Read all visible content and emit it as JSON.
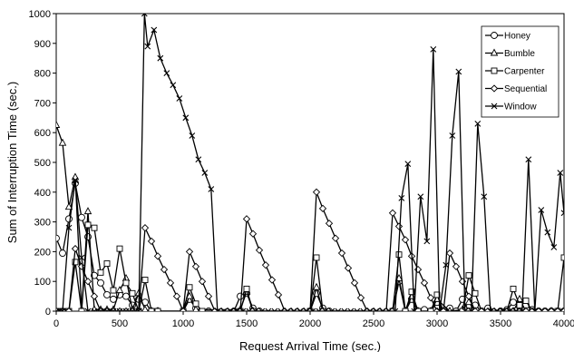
{
  "chart_data": {
    "type": "line",
    "xlabel": "Request Arrival Time (sec.)",
    "ylabel": "Sum of Interruption Time (sec.)",
    "xlim": [
      0,
      4000
    ],
    "ylim": [
      0,
      1000
    ],
    "xticks": [
      0,
      500,
      1000,
      1500,
      2000,
      2500,
      3000,
      3500,
      4000
    ],
    "yticks": [
      0,
      100,
      200,
      300,
      400,
      500,
      600,
      700,
      800,
      900,
      1000
    ],
    "grid": false,
    "legend_placement": "top-right",
    "series": [
      {
        "name": "Honey",
        "marker": "circle",
        "x": [
          0,
          50,
          100,
          150,
          200,
          250,
          300,
          350,
          400,
          450,
          500,
          550,
          600,
          650,
          700,
          750,
          800,
          1000,
          1050,
          1100,
          1200,
          1400,
          1450,
          1500,
          1550,
          1600,
          2000,
          2050,
          2100,
          2150,
          2650,
          2700,
          2750,
          2800,
          2850,
          2900,
          2950,
          3000,
          3050,
          3100,
          3150,
          3200,
          3250,
          3300,
          3350,
          3400,
          3500,
          3550,
          3600,
          3650,
          3700,
          3750,
          3800,
          3850,
          3900,
          3950,
          4000
        ],
        "y": [
          245,
          195,
          310,
          430,
          315,
          250,
          120,
          95,
          55,
          40,
          55,
          50,
          20,
          40,
          30,
          0,
          0,
          0,
          40,
          10,
          0,
          0,
          50,
          60,
          10,
          0,
          0,
          60,
          10,
          0,
          0,
          100,
          0,
          40,
          0,
          5,
          0,
          30,
          0,
          10,
          0,
          40,
          0,
          20,
          0,
          10,
          0,
          5,
          30,
          15,
          20,
          5,
          0,
          0,
          0,
          0,
          0
        ]
      },
      {
        "name": "Bumble",
        "marker": "triangle",
        "x": [
          0,
          50,
          100,
          150,
          200,
          250,
          300,
          350,
          400,
          450,
          500,
          550,
          600,
          650,
          700,
          750,
          800,
          1000,
          1050,
          1100,
          1450,
          1500,
          1550,
          2000,
          2050,
          2100,
          2650,
          2700,
          2750,
          2800,
          2850,
          2950,
          3000,
          3100,
          3200,
          3250,
          3300,
          3600,
          3650,
          3700,
          3900,
          4000
        ],
        "y": [
          625,
          565,
          350,
          450,
          5,
          335,
          5,
          5,
          5,
          5,
          70,
          110,
          5,
          60,
          5,
          0,
          0,
          0,
          50,
          5,
          5,
          65,
          0,
          0,
          80,
          0,
          0,
          110,
          0,
          50,
          0,
          0,
          40,
          0,
          5,
          30,
          0,
          0,
          40,
          0,
          0,
          0
        ]
      },
      {
        "name": "Carpenter",
        "marker": "square",
        "x": [
          0,
          50,
          100,
          150,
          200,
          250,
          300,
          350,
          400,
          450,
          500,
          550,
          600,
          650,
          700,
          750,
          800,
          1000,
          1050,
          1100,
          1150,
          1450,
          1500,
          1550,
          2000,
          2050,
          2100,
          2650,
          2700,
          2750,
          2800,
          2850,
          2950,
          3000,
          3050,
          3200,
          3250,
          3300,
          3350,
          3550,
          3600,
          3650,
          3700,
          3750,
          3950,
          4000
        ],
        "y": [
          0,
          0,
          0,
          165,
          0,
          290,
          280,
          130,
          160,
          70,
          210,
          95,
          60,
          0,
          105,
          0,
          0,
          0,
          80,
          25,
          0,
          0,
          75,
          0,
          0,
          180,
          0,
          0,
          190,
          0,
          65,
          0,
          0,
          55,
          0,
          0,
          120,
          60,
          0,
          0,
          75,
          20,
          35,
          0,
          0,
          180
        ]
      },
      {
        "name": "Sequential",
        "marker": "diamond",
        "x": [
          0,
          50,
          100,
          150,
          200,
          250,
          300,
          350,
          400,
          450,
          500,
          550,
          600,
          650,
          700,
          750,
          800,
          850,
          900,
          950,
          1000,
          1050,
          1100,
          1150,
          1200,
          1250,
          1300,
          1350,
          1400,
          1450,
          1500,
          1550,
          1600,
          1650,
          1700,
          1750,
          1800,
          1850,
          1900,
          1950,
          2000,
          2050,
          2100,
          2150,
          2200,
          2250,
          2300,
          2350,
          2400,
          2450,
          2500,
          2550,
          2600,
          2650,
          2700,
          2750,
          2800,
          2850,
          2900,
          2950,
          3000,
          3050,
          3100,
          3150,
          3200,
          3250,
          3300,
          3350,
          3400,
          3450,
          3500,
          3550,
          3600,
          3650,
          3700,
          3750,
          3800,
          3850,
          3900,
          3950,
          4000
        ],
        "y": [
          0,
          0,
          0,
          210,
          150,
          100,
          50,
          0,
          0,
          0,
          0,
          0,
          0,
          0,
          280,
          235,
          185,
          140,
          95,
          50,
          0,
          200,
          150,
          100,
          50,
          0,
          0,
          0,
          0,
          0,
          310,
          260,
          205,
          155,
          105,
          55,
          0,
          0,
          0,
          0,
          0,
          400,
          345,
          295,
          245,
          195,
          145,
          95,
          45,
          0,
          0,
          0,
          0,
          330,
          285,
          240,
          185,
          140,
          95,
          45,
          0,
          0,
          195,
          150,
          100,
          50,
          0,
          0,
          0,
          0,
          0,
          0,
          0,
          0,
          0,
          0,
          0,
          0,
          0,
          0,
          0
        ]
      },
      {
        "name": "Window",
        "marker": "x",
        "x": [
          0,
          50,
          100,
          150,
          200,
          250,
          300,
          350,
          400,
          450,
          500,
          550,
          600,
          650,
          695,
          720,
          770,
          820,
          870,
          920,
          970,
          1020,
          1070,
          1120,
          1170,
          1220,
          1270,
          1320,
          1370,
          1420,
          1470,
          1520,
          1570,
          1620,
          1670,
          1720,
          1770,
          1820,
          1870,
          1920,
          1970,
          2020,
          2070,
          2120,
          2170,
          2220,
          2270,
          2320,
          2370,
          2420,
          2470,
          2520,
          2570,
          2620,
          2670,
          2720,
          2770,
          2820,
          2870,
          2920,
          2970,
          3020,
          3070,
          3120,
          3170,
          3220,
          3270,
          3320,
          3370,
          3420,
          3470,
          3520,
          3570,
          3620,
          3670,
          3720,
          3770,
          3820,
          3870,
          3920,
          3970,
          4000
        ],
        "y": [
          0,
          0,
          280,
          440,
          180,
          0,
          0,
          0,
          0,
          0,
          0,
          0,
          0,
          0,
          1000,
          890,
          945,
          850,
          800,
          760,
          715,
          650,
          590,
          510,
          465,
          410,
          0,
          0,
          0,
          0,
          0,
          0,
          0,
          0,
          0,
          0,
          0,
          0,
          0,
          0,
          0,
          0,
          0,
          0,
          0,
          0,
          0,
          0,
          0,
          0,
          0,
          0,
          0,
          0,
          0,
          380,
          495,
          0,
          385,
          235,
          880,
          0,
          155,
          590,
          805,
          0,
          0,
          630,
          385,
          0,
          0,
          0,
          0,
          0,
          0,
          510,
          0,
          340,
          265,
          215,
          465,
          330
        ]
      }
    ]
  }
}
